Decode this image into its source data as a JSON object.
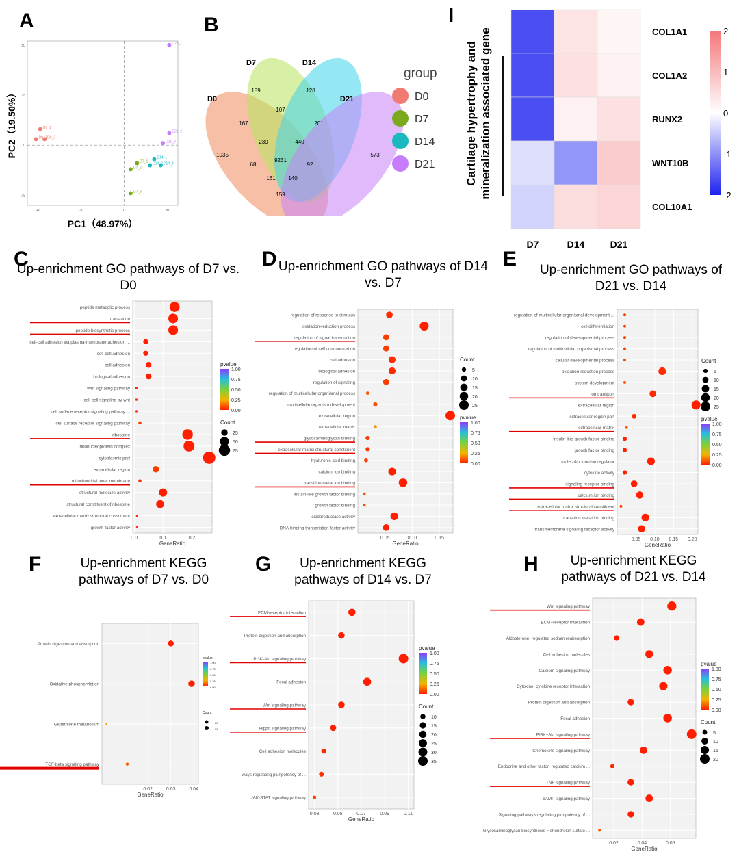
{
  "panel_labels": {
    "A": "A",
    "B": "B",
    "C": "C",
    "D": "D",
    "E": "E",
    "F": "F",
    "G": "G",
    "H": "H",
    "I": "I"
  },
  "colors": {
    "high": "#e8292b",
    "low": "#f5d020",
    "pv_low": "#ff2000",
    "heat_high": "#f4777a",
    "heat_low": "#1e22ee"
  },
  "chart_data": [
    {
      "id": "A",
      "type": "scatter",
      "xlabel": "PC1（48.97%）",
      "ylabel": "PC2（19.50%）",
      "xticks": [
        "-40",
        "-20",
        "0",
        "20"
      ],
      "yticks": [
        "50",
        "25",
        "0",
        "-25"
      ],
      "xlim": [
        -45,
        25
      ],
      "ylim": [
        -30,
        52
      ],
      "points": [
        {
          "group": "D0",
          "label": "D0_1",
          "x": -39,
          "y": 8,
          "color": "#f07b72"
        },
        {
          "group": "D0",
          "label": "D0_2",
          "x": -37,
          "y": 3,
          "color": "#f07b72"
        },
        {
          "group": "D0",
          "label": "D0_3",
          "x": -41,
          "y": 3,
          "color": "#f07b72"
        },
        {
          "group": "D7",
          "label": "D7_1",
          "x": 6,
          "y": -9,
          "color": "#7caa1e"
        },
        {
          "group": "D7",
          "label": "D7_2",
          "x": 3,
          "y": -12,
          "color": "#7caa1e"
        },
        {
          "group": "D7",
          "label": "D7_3",
          "x": 3,
          "y": -24,
          "color": "#7caa1e"
        },
        {
          "group": "D14",
          "label": "D14_1",
          "x": 14,
          "y": -7,
          "color": "#1ab8bf"
        },
        {
          "group": "D14",
          "label": "D14_2",
          "x": 12,
          "y": -10,
          "color": "#1ab8bf"
        },
        {
          "group": "D14",
          "label": "D14_3",
          "x": 17,
          "y": -10,
          "color": "#1ab8bf"
        },
        {
          "group": "D21",
          "label": "D21_1",
          "x": 21,
          "y": 50,
          "color": "#c77cff"
        },
        {
          "group": "D21",
          "label": "D21_2",
          "x": 21,
          "y": 6,
          "color": "#c77cff"
        },
        {
          "group": "D21",
          "label": "D21_3",
          "x": 18,
          "y": 1,
          "color": "#c77cff"
        }
      ]
    },
    {
      "id": "B",
      "type": "venn",
      "sets": [
        "D0",
        "D7",
        "D14",
        "D21"
      ],
      "set_colors": [
        "#f08c5c",
        "#b6e35c",
        "#3fd3eb",
        "#c982f7"
      ],
      "legend_title": "group",
      "legend_colors": [
        "#f07b72",
        "#7caa1e",
        "#1ab8bf",
        "#c77cff"
      ],
      "regions": [
        "1035",
        "189",
        "128",
        "573",
        "167",
        "107",
        "201",
        "68",
        "92",
        "239",
        "440",
        "9231",
        "161",
        "140",
        "159"
      ]
    },
    {
      "id": "I",
      "type": "heatmap",
      "title": "Cartilage hypertrophy and mineralization associated gene",
      "columns": [
        "D7",
        "D14",
        "D21"
      ],
      "rows": [
        "COL1A1",
        "COL1A2",
        "RUNX2",
        "WNT10B",
        "COL10A1"
      ],
      "values": [
        [
          -1.6,
          0.4,
          0.15
        ],
        [
          -1.6,
          0.45,
          0.2
        ],
        [
          -1.6,
          0.2,
          0.45
        ],
        [
          -0.3,
          -0.95,
          0.75
        ],
        [
          -0.4,
          0.5,
          0.6
        ]
      ],
      "scale_min": -2,
      "scale_max": 2,
      "scale_ticks": [
        "2",
        "1",
        "0",
        "-1",
        "-2"
      ]
    },
    {
      "id": "C",
      "type": "scatter",
      "subtype": "dot-enrichment",
      "title": "Up-enrichment GO pathways of D7 vs. D0",
      "xlabel": "GeneRatio",
      "xticks": [
        "0.0",
        "0.1",
        "0.2"
      ],
      "xticks_val": [
        0,
        0.1,
        0.2
      ],
      "xlim": [
        -0.005,
        0.27
      ],
      "categories": [
        "peptide metabolic process",
        "translation",
        "peptide biosynthetic process",
        "cell-cell adhesion via plasma-membrane adhesion ...",
        "cell-cell adhesion",
        "cell adhesion",
        "biological adhesion",
        "Wnt signaling pathway",
        "cell-cell signaling by wnt",
        "cell surface receptor signaling pathway ...",
        "cell surface receptor signaling pathway",
        "ribosome",
        "ribonucleoprotein complex",
        "cytoplasmic part",
        "extracellular region",
        "mitochondrial inner membrane",
        "structural molecule activity",
        "structural constituent of ribosome",
        "extracellular matrix structural constituent",
        "growth factor activity"
      ],
      "gene_ratio": [
        0.14,
        0.135,
        0.135,
        0.04,
        0.04,
        0.05,
        0.05,
        0.008,
        0.008,
        0.008,
        0.02,
        0.185,
        0.19,
        0.26,
        0.075,
        0.02,
        0.1,
        0.09,
        0.01,
        0.01
      ],
      "count": [
        60,
        55,
        55,
        15,
        15,
        20,
        20,
        3,
        3,
        3,
        6,
        65,
        70,
        90,
        25,
        6,
        40,
        38,
        3,
        3
      ],
      "pvalue": [
        0.0,
        0.0,
        0.0,
        0.0,
        0.0,
        0.0,
        0.0,
        0.02,
        0.02,
        0.02,
        0.05,
        0.0,
        0.0,
        0.0,
        0.05,
        0.03,
        0.0,
        0.0,
        0.02,
        0.02
      ],
      "underlined": [
        "translation",
        "peptide biosynthetic process",
        "ribosome",
        "mitochondrial inner membrane"
      ],
      "legend": {
        "pvalue_title": "pvalue",
        "pvalue_ticks": [
          "1.00",
          "0.75",
          "0.50",
          "0.25",
          "0.00"
        ],
        "count_title": "Count",
        "count_ticks": [
          "25",
          "50",
          "75"
        ],
        "count_vals": [
          25,
          50,
          75
        ]
      }
    },
    {
      "id": "D",
      "type": "scatter",
      "subtype": "dot-enrichment",
      "title": "Up-enrichment GO pathways of D14 vs. D7",
      "xlabel": "GeneRatio",
      "xticks": [
        "0.05",
        "0.10",
        "0.15"
      ],
      "xticks_val": [
        0.05,
        0.1,
        0.15
      ],
      "xlim": [
        0.0,
        0.175
      ],
      "categories": [
        "regulation of response to stimulus",
        "oxidation-reduction process",
        "regulation of signal transduction",
        "regulation of cell communication",
        "cell adhesion",
        "biological adhesion",
        "regulation of signaling",
        "regulation of multicellular organismal process",
        "multicellular organism development",
        "extracellular region",
        "extracellular matrix",
        "glycosaminoglycan binding",
        "extracellular matrix structural constituent",
        "hyaluronic acid binding",
        "calcium ion binding",
        "transition metal ion binding",
        "insulin-like growth factor binding",
        "growth factor binding",
        "oxidoreductase activity",
        "DNA-binding transcription factor activity"
      ],
      "gene_ratio": [
        0.058,
        0.122,
        0.052,
        0.052,
        0.063,
        0.063,
        0.052,
        0.018,
        0.032,
        0.17,
        0.032,
        0.018,
        0.018,
        0.015,
        0.063,
        0.083,
        0.012,
        0.012,
        0.067,
        0.052
      ],
      "count": [
        12,
        22,
        10,
        10,
        13,
        13,
        10,
        3,
        5,
        25,
        3,
        5,
        5,
        4,
        16,
        20,
        2,
        2,
        16,
        12
      ],
      "pvalue": [
        0.02,
        0.0,
        0.05,
        0.05,
        0.02,
        0.02,
        0.05,
        0.1,
        0.08,
        0.0,
        0.2,
        0.05,
        0.05,
        0.05,
        0.0,
        0.0,
        0.08,
        0.08,
        0.0,
        0.0
      ],
      "underlined": [
        "regulation of signal transduction",
        "glycosaminoglycan binding",
        "extracellular matrix structural constituent",
        "transition metal ion binding"
      ],
      "legend": {
        "pvalue_title": "pvalue",
        "pvalue_ticks": [
          "1.00",
          "0.75",
          "0.50",
          "0.25",
          "0.00"
        ],
        "count_title": "Count",
        "count_ticks": [
          "5",
          "10",
          "15",
          "20",
          "25"
        ],
        "count_vals": [
          5,
          10,
          15,
          20,
          25
        ]
      }
    },
    {
      "id": "E",
      "type": "scatter",
      "subtype": "dot-enrichment",
      "title": "Up-enrichment GO pathways of D21 vs. D14",
      "xlabel": "GeneRatio",
      "xticks": [
        "0.05",
        "0.10",
        "0.15",
        "0.20"
      ],
      "xticks_val": [
        0.05,
        0.1,
        0.15,
        0.2
      ],
      "xlim": [
        0.0,
        0.215
      ],
      "categories": [
        "regulation of multicellular organismal development ...",
        "cell differentiation",
        "regulation of developmental process",
        "regulation of multicellular organismal process",
        "cellular developmental process",
        "oxidation-reduction process",
        "system development",
        "ion transport",
        "extracellular region",
        "extracellular region part",
        "extracellular matrix",
        "insulin-like growth factor binding",
        "growth factor binding",
        "molecular function regulator",
        "cytokine activity",
        "signaling receptor binding",
        "calcium ion binding",
        "extracellular matrix structural constituent",
        "transition metal ion binding",
        "transmembrane signaling receptor activity"
      ],
      "gene_ratio": [
        0.02,
        0.02,
        0.02,
        0.02,
        0.02,
        0.12,
        0.02,
        0.095,
        0.21,
        0.045,
        0.025,
        0.02,
        0.02,
        0.09,
        0.02,
        0.045,
        0.06,
        0.01,
        0.075,
        0.065
      ],
      "count": [
        2,
        2,
        2,
        2,
        2,
        16,
        2,
        12,
        22,
        6,
        2,
        5,
        5,
        16,
        5,
        12,
        14,
        2,
        16,
        14
      ],
      "pvalue": [
        0.05,
        0.05,
        0.05,
        0.05,
        0.05,
        0.02,
        0.08,
        0.02,
        0.0,
        0.02,
        0.1,
        0.0,
        0.0,
        0.0,
        0.0,
        0.0,
        0.0,
        0.05,
        0.0,
        0.0
      ],
      "underlined": [
        "ion transport",
        "extracellular matrix",
        "signaling receptor binding",
        "calcium ion binding",
        "extracellular matrix structural constituent"
      ],
      "legend": {
        "pvalue_title": "pvalue",
        "pvalue_ticks": [
          "1.00",
          "0.75",
          "0.50",
          "0.25",
          "0.00"
        ],
        "count_title": "Count",
        "count_ticks": [
          "5",
          "10",
          "15",
          "20",
          "25"
        ],
        "count_vals": [
          5,
          10,
          15,
          20,
          25
        ]
      }
    },
    {
      "id": "F",
      "type": "scatter",
      "subtype": "dot-enrichment",
      "title": "Up-enrichment KEGG pathways of D7 vs. D0",
      "xlabel": "GeneRatio",
      "xticks": [
        "0.02",
        "0.03",
        "0.04"
      ],
      "xticks_val": [
        0.02,
        0.03,
        0.04
      ],
      "xlim": [
        0.0,
        0.042
      ],
      "categories": [
        "Protein digestion and absorption",
        "Oxidative phosphorylation",
        "Glutathione metabolism",
        "TGF-beta signaling pathway"
      ],
      "gene_ratio": [
        0.03,
        0.039,
        0.002,
        0.011
      ],
      "count": [
        22,
        27,
        2,
        6
      ],
      "pvalue": [
        0.0,
        0.0,
        0.2,
        0.1
      ],
      "underlined": [
        "TGF-beta signaling pathway"
      ],
      "legend": {
        "pvalue_title": "pvalue",
        "pvalue_ticks": [
          "1.00",
          "0.75",
          "0.50",
          "0.25",
          "0.00"
        ],
        "count_title": "Count",
        "count_ticks": [
          "20",
          "30"
        ],
        "count_vals": [
          20,
          30
        ]
      }
    },
    {
      "id": "G",
      "type": "scatter",
      "subtype": "dot-enrichment",
      "title": "Up-enrichment KEGG pathways of D14 vs. D7",
      "xlabel": "GeneRatio",
      "xticks": [
        "0.03",
        "0.05",
        "0.07",
        "0.09",
        "0.11"
      ],
      "xticks_val": [
        0.03,
        0.05,
        0.07,
        0.09,
        0.11
      ],
      "xlim": [
        0.025,
        0.115
      ],
      "categories": [
        "ECM-receptor interaction",
        "Protein digestion and absorption",
        "PI3K-Akt signaling pathway",
        "Focal adhesion",
        "Wnt signaling pathway",
        "Hippo signaling pathway",
        "Cell adhesion molecules",
        "ways regulating pluripotency of ...",
        "JAK-STAT signaling pathway"
      ],
      "gene_ratio": [
        0.062,
        0.053,
        0.106,
        0.075,
        0.053,
        0.046,
        0.038,
        0.036,
        0.03
      ],
      "count": [
        20,
        16,
        35,
        24,
        16,
        14,
        10,
        9,
        5
      ],
      "pvalue": [
        0.0,
        0.0,
        0.0,
        0.0,
        0.0,
        0.0,
        0.02,
        0.03,
        0.05
      ],
      "underlined": [
        "ECM-receptor interaction",
        "PI3K-Akt signaling pathway",
        "Wnt signaling pathway",
        "Hippo signaling pathway"
      ],
      "legend": {
        "pvalue_title": "pvalue",
        "pvalue_ticks": [
          "1.00",
          "0.75",
          "0.50",
          "0.25",
          "0.00"
        ],
        "count_title": "Count",
        "count_ticks": [
          "10",
          "15",
          "20",
          "25",
          "30",
          "35"
        ],
        "count_vals": [
          10,
          15,
          20,
          25,
          30,
          35
        ]
      }
    },
    {
      "id": "H",
      "type": "scatter",
      "subtype": "dot-enrichment",
      "title": "Up-enrichment KEGG pathways of D21 vs. D14",
      "xlabel": "GeneRatio",
      "xticks": [
        "0.02",
        "0.04",
        "0.06"
      ],
      "xticks_val": [
        0.02,
        0.04,
        0.06
      ],
      "xlim": [
        0.005,
        0.078
      ],
      "categories": [
        "Wnt signaling pathway",
        "ECM−receptor interaction",
        "Aldosterone−regulated sodium reabsorption",
        "Cell adhesion molecules",
        "Calcium signaling pathway",
        "Cytokine−cytokine receptor interaction",
        "Protein digestion and absorption",
        "Focal adhesion",
        "PI3K−Akt signaling pathway",
        "Chemokine signaling pathway",
        "Endocrine and other factor−regulated calcium ...",
        "TNF signaling pathway",
        "cAMP signaling pathway",
        "Signaling pathways regulating pluripotency of ...",
        "Glycosaminoglycan biosynthesis − chondroitin sulfate ..."
      ],
      "gene_ratio": [
        0.061,
        0.039,
        0.022,
        0.045,
        0.058,
        0.055,
        0.032,
        0.058,
        0.075,
        0.041,
        0.019,
        0.032,
        0.045,
        0.032,
        0.01
      ],
      "count": [
        18,
        12,
        7,
        13,
        16,
        15,
        9,
        16,
        20,
        12,
        4,
        9,
        12,
        9,
        2
      ],
      "pvalue": [
        0.0,
        0.0,
        0.0,
        0.0,
        0.0,
        0.0,
        0.0,
        0.0,
        0.0,
        0.0,
        0.02,
        0.0,
        0.0,
        0.0,
        0.1
      ],
      "underlined": [
        "Wnt signaling pathway",
        "PI3K−Akt signaling pathway",
        "TNF signaling pathway"
      ],
      "legend": {
        "pvalue_title": "pvalue",
        "pvalue_ticks": [
          "1.00",
          "0.75",
          "0.50",
          "0.25",
          "0.00"
        ],
        "count_title": "Count",
        "count_ticks": [
          "5",
          "10",
          "15",
          "20"
        ],
        "count_vals": [
          5,
          10,
          15,
          20
        ]
      }
    }
  ]
}
